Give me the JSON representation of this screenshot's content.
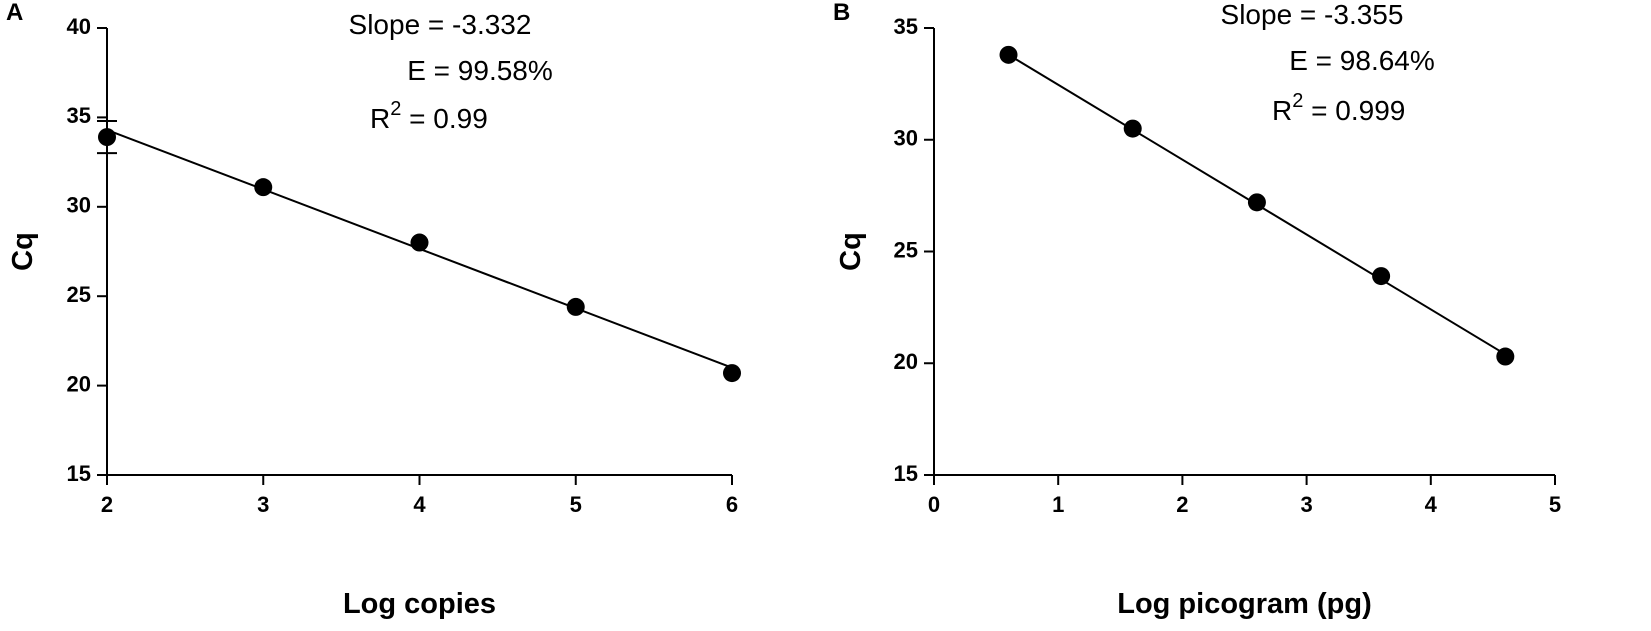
{
  "chart_data": [
    {
      "type": "scatter",
      "panel_label": "A",
      "x_label": "Log copies",
      "y_label": "Cq",
      "slope_label": "Slope = -3.332",
      "efficiency_label": "E = 99.58%",
      "r_squared_label": "R",
      "r_squared_superscript": "2",
      "r_squared_value": " = 0.99",
      "xlim": [
        2,
        6
      ],
      "xticks": [
        2,
        3,
        4,
        5,
        6
      ],
      "ylim": [
        15,
        40
      ],
      "yticks": [
        15,
        20,
        25,
        30,
        35,
        40
      ],
      "series": [
        {
          "color": "#000000",
          "x": [
            2,
            3,
            4,
            5,
            6
          ],
          "values": [
            33.9,
            31.1,
            28.0,
            24.4,
            20.7
          ],
          "errors": [
            0.9,
            null,
            null,
            null,
            null
          ]
        }
      ],
      "fit_line": {
        "color": "#000000",
        "x": [
          2,
          6
        ],
        "values": [
          34.3,
          21.0
        ]
      }
    },
    {
      "type": "scatter",
      "panel_label": "B",
      "x_label": "Log picogram (pg)",
      "y_label": "Cq",
      "slope_label": "Slope = -3.355",
      "efficiency_label": "E = 98.64%",
      "r_squared_label": "R",
      "r_squared_superscript": "2",
      "r_squared_value": " = 0.999",
      "xlim": [
        0,
        5
      ],
      "xticks": [
        0,
        1,
        2,
        3,
        4,
        5
      ],
      "ylim": [
        15,
        35
      ],
      "yticks": [
        15,
        20,
        25,
        30,
        35
      ],
      "series": [
        {
          "color": "#000000",
          "x": [
            0.6,
            1.6,
            2.6,
            3.6,
            4.6
          ],
          "values": [
            33.8,
            30.5,
            27.2,
            23.9,
            20.3
          ],
          "errors": [
            null,
            null,
            null,
            null,
            null
          ]
        }
      ],
      "fit_line": {
        "color": "#000000",
        "x": [
          0.6,
          4.6
        ],
        "values": [
          33.8,
          20.4
        ]
      }
    }
  ]
}
